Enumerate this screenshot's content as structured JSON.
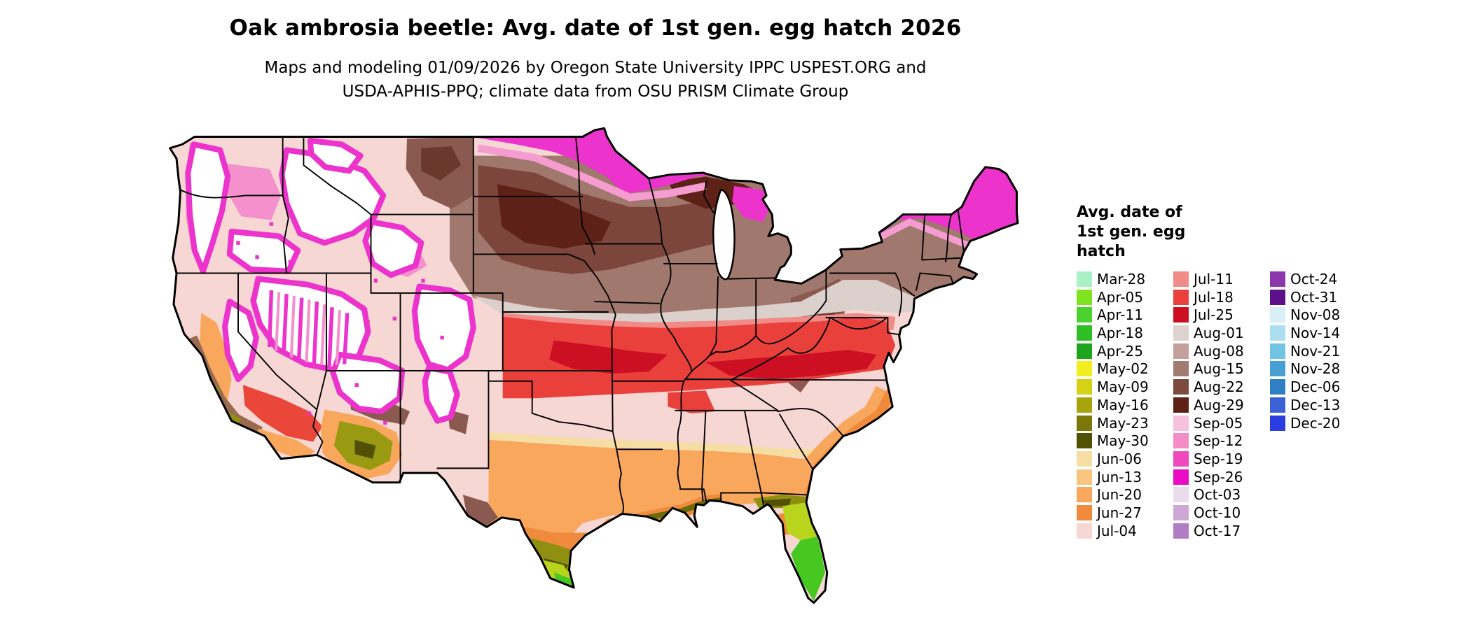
{
  "header": {
    "title": "Oak ambrosia beetle: Avg. date of 1st gen. egg hatch 2026",
    "subtitle_line1": "Maps and modeling 01/09/2026 by Oregon State University IPPC USPEST.ORG and",
    "subtitle_line2": "USDA-APHIS-PPQ; climate data from OSU PRISM Climate Group"
  },
  "legend": {
    "title_lines": [
      "Avg. date of",
      "1st gen. egg",
      "hatch"
    ],
    "columns": [
      {
        "items": [
          {
            "label": "Mar-28",
            "color": "#a9f1c5"
          },
          {
            "label": "Apr-05",
            "color": "#7fe31f"
          },
          {
            "label": "Apr-11",
            "color": "#4cd22e"
          },
          {
            "label": "Apr-18",
            "color": "#2fbe26"
          },
          {
            "label": "Apr-25",
            "color": "#1ea51e"
          },
          {
            "label": "May-02",
            "color": "#f0ee1e"
          },
          {
            "label": "May-09",
            "color": "#d5d115"
          },
          {
            "label": "May-16",
            "color": "#a8a40e"
          },
          {
            "label": "May-23",
            "color": "#7b7709"
          },
          {
            "label": "May-30",
            "color": "#525005"
          },
          {
            "label": "Jun-06",
            "color": "#f6dda4"
          },
          {
            "label": "Jun-13",
            "color": "#f8c581"
          },
          {
            "label": "Jun-20",
            "color": "#f8a75d"
          },
          {
            "label": "Jun-27",
            "color": "#f08a3c"
          },
          {
            "label": "Jul-04",
            "color": "#f6d7d3"
          }
        ]
      },
      {
        "items": [
          {
            "label": "Jul-11",
            "color": "#f18b87"
          },
          {
            "label": "Jul-18",
            "color": "#ea403b"
          },
          {
            "label": "Jul-25",
            "color": "#cc0f22"
          },
          {
            "label": "Aug-01",
            "color": "#ded2cf"
          },
          {
            "label": "Aug-08",
            "color": "#c3a09b"
          },
          {
            "label": "Aug-15",
            "color": "#a17a71"
          },
          {
            "label": "Aug-22",
            "color": "#7c4a3f"
          },
          {
            "label": "Aug-29",
            "color": "#5e2118"
          },
          {
            "label": "Sep-05",
            "color": "#f7c0dc"
          },
          {
            "label": "Sep-12",
            "color": "#f48cc8"
          },
          {
            "label": "Sep-19",
            "color": "#ef49bd"
          },
          {
            "label": "Sep-26",
            "color": "#ec0bc4"
          },
          {
            "label": "Oct-03",
            "color": "#eadcec"
          },
          {
            "label": "Oct-10",
            "color": "#cda8d6"
          },
          {
            "label": "Oct-17",
            "color": "#b17cc5"
          }
        ]
      },
      {
        "items": [
          {
            "label": "Oct-24",
            "color": "#8b36ac"
          },
          {
            "label": "Oct-31",
            "color": "#5e0f8a"
          },
          {
            "label": "Nov-08",
            "color": "#d8eff7"
          },
          {
            "label": "Nov-14",
            "color": "#abdeee"
          },
          {
            "label": "Nov-21",
            "color": "#72c4e2"
          },
          {
            "label": "Nov-28",
            "color": "#47a0d4"
          },
          {
            "label": "Dec-06",
            "color": "#2f7fc2"
          },
          {
            "label": "Dec-13",
            "color": "#3a62d6"
          },
          {
            "label": "Dec-20",
            "color": "#2b3ce0"
          }
        ]
      }
    ]
  }
}
